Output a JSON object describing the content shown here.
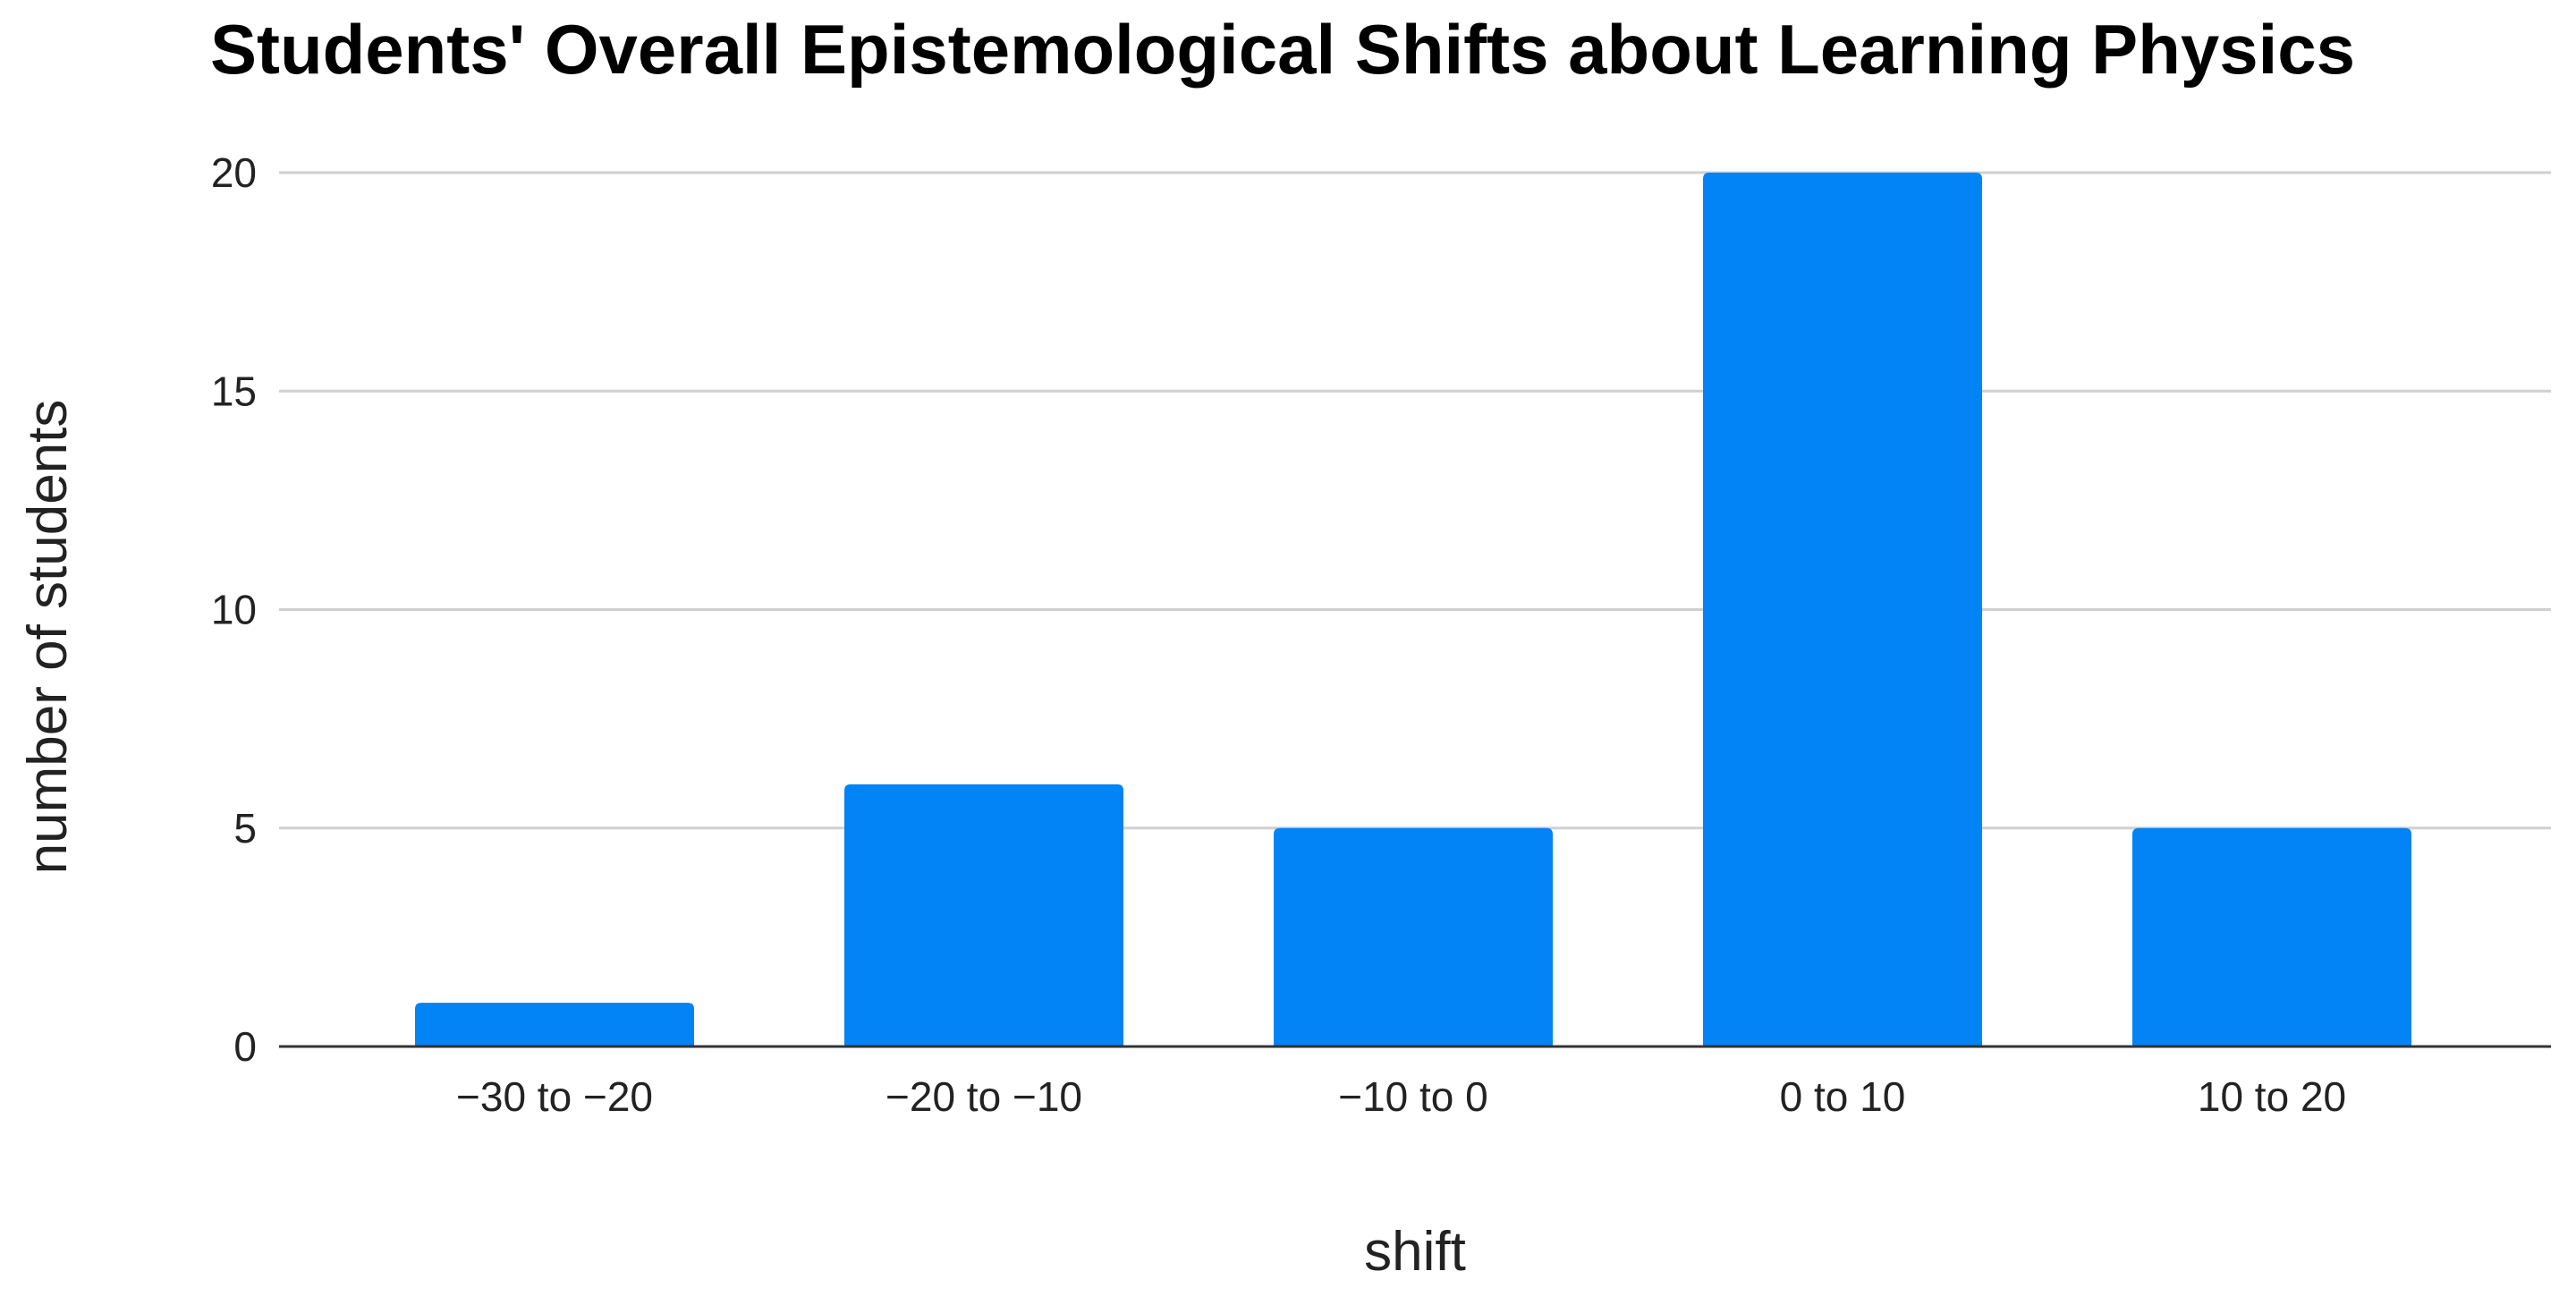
{
  "chart_data": {
    "type": "bar",
    "title": "Students' Overall Epistemological Shifts about Learning Physics",
    "xlabel": "shift",
    "ylabel": "number of students",
    "categories": [
      "−30 to −20",
      "−20 to −10",
      "−10 to 0",
      "0 to 10",
      "10 to 20"
    ],
    "values": [
      1,
      6,
      5,
      20,
      5
    ],
    "ylim": [
      0,
      20
    ],
    "yticks": [
      0,
      5,
      10,
      15,
      20
    ],
    "grid": true,
    "legend": "none",
    "bar_color": "#0283f6"
  }
}
